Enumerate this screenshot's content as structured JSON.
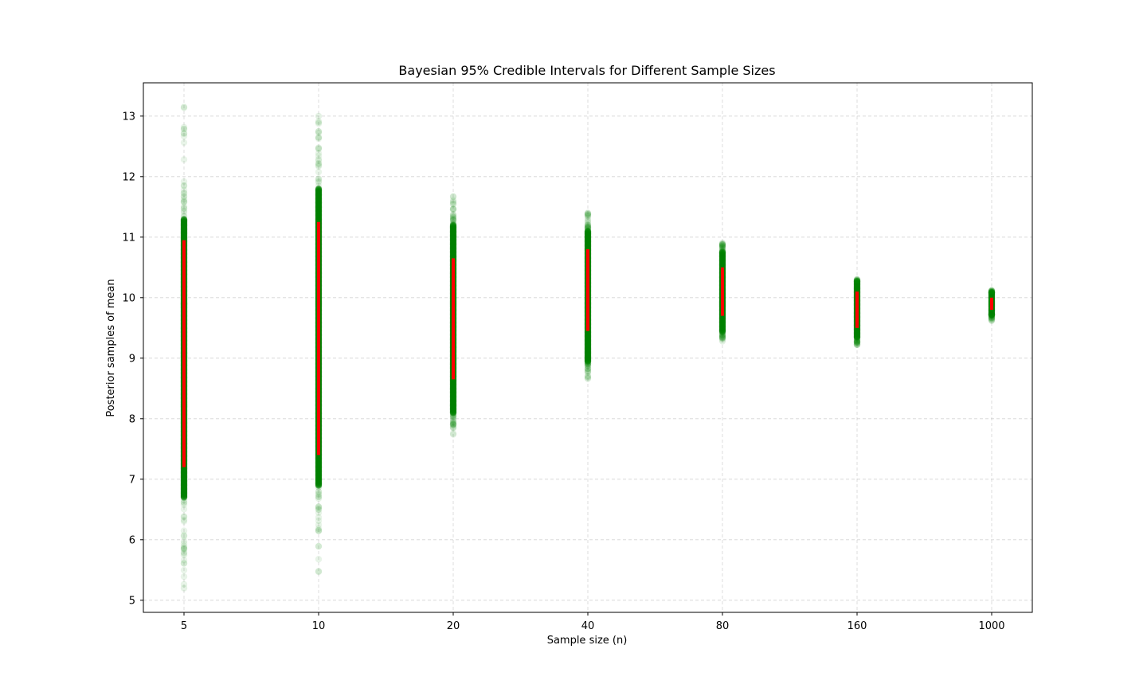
{
  "chart_data": {
    "type": "scatter",
    "title": "Bayesian 95% Credible Intervals for Different Sample Sizes",
    "xlabel": "Sample size (n)",
    "ylabel": "Posterior samples of mean",
    "x_type": "categorical",
    "categories": [
      "5",
      "10",
      "20",
      "40",
      "80",
      "160",
      "1000"
    ],
    "ylim": [
      4.8,
      13.55
    ],
    "yticks": [
      5,
      6,
      7,
      8,
      9,
      10,
      11,
      12,
      13
    ],
    "grid": true,
    "colors": {
      "samples": "#008000",
      "interval": "#ff0000"
    },
    "series": [
      {
        "name": "5",
        "sample_range": [
          5.2,
          13.15
        ],
        "dense_range": [
          6.7,
          11.3
        ],
        "credible_interval": [
          7.2,
          10.95
        ]
      },
      {
        "name": "10",
        "sample_range": [
          5.47,
          13.0
        ],
        "dense_range": [
          6.9,
          11.8
        ],
        "credible_interval": [
          7.4,
          11.25
        ]
      },
      {
        "name": "20",
        "sample_range": [
          7.74,
          11.67
        ],
        "dense_range": [
          8.1,
          11.2
        ],
        "credible_interval": [
          8.65,
          10.65
        ]
      },
      {
        "name": "40",
        "sample_range": [
          8.66,
          11.4
        ],
        "dense_range": [
          8.95,
          11.1
        ],
        "credible_interval": [
          9.45,
          10.8
        ]
      },
      {
        "name": "80",
        "sample_range": [
          9.28,
          10.9
        ],
        "dense_range": [
          9.45,
          10.75
        ],
        "credible_interval": [
          9.7,
          10.5
        ]
      },
      {
        "name": "160",
        "sample_range": [
          9.22,
          10.3
        ],
        "dense_range": [
          9.35,
          10.25
        ],
        "credible_interval": [
          9.5,
          10.1
        ]
      },
      {
        "name": "1000",
        "sample_range": [
          9.62,
          10.12
        ],
        "dense_range": [
          9.72,
          10.08
        ],
        "credible_interval": [
          9.8,
          10.0
        ]
      }
    ]
  }
}
